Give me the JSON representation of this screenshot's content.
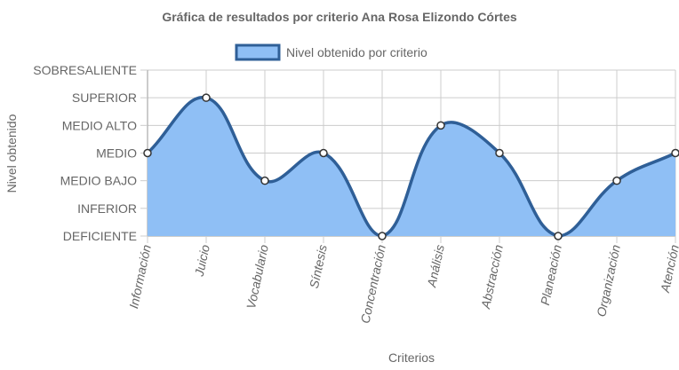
{
  "chart_data": {
    "type": "area",
    "title": "Gráfica de resultados por criterio Ana Rosa Elizondo Córtes",
    "xlabel": "Criterios",
    "ylabel": "Nivel obtenido",
    "y_levels": [
      "DEFICIENTE",
      "INFERIOR",
      "MEDIO BAJO",
      "MEDIO",
      "MEDIO ALTO",
      "SUPERIOR",
      "SOBRESALIENTE"
    ],
    "categories": [
      "Información",
      "Juicio",
      "Vocabulario",
      "Síntesis",
      "Concentración",
      "Análisis",
      "Abstracción",
      "Planeación",
      "Organización",
      "Atención"
    ],
    "series": [
      {
        "name": "Nivel obtenido por criterio",
        "values": [
          "MEDIO",
          "SUPERIOR",
          "MEDIO BAJO",
          "MEDIO",
          "DEFICIENTE",
          "MEDIO ALTO",
          "MEDIO",
          "DEFICIENTE",
          "MEDIO BAJO",
          "MEDIO"
        ]
      }
    ],
    "legend_position": "top",
    "grid": true,
    "colors": {
      "fill": "#8fbff5",
      "line": "#2f5f97",
      "point_fill": "#ffffff",
      "grid": "#cccccc",
      "axis": "#999999"
    }
  }
}
